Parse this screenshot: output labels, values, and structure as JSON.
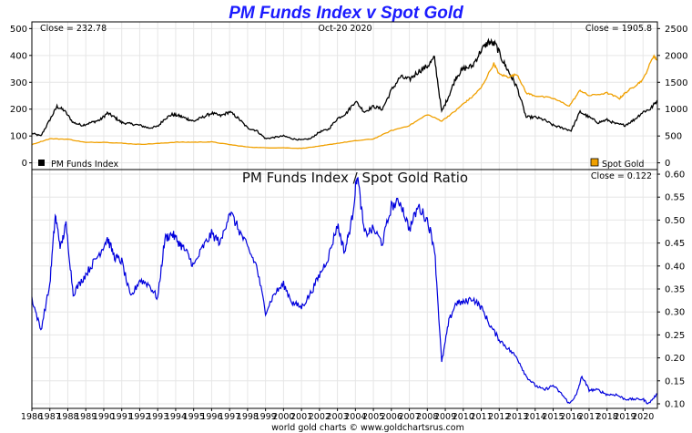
{
  "title": "PM Funds Index v Spot Gold",
  "footer": "world gold charts © www.goldchartsrus.com",
  "chart_data": [
    {
      "type": "line",
      "top_left_label": "Close = 232.78",
      "top_center_label": "Oct-20  2020",
      "top_right_label": "Close = 1905.8",
      "left_axis": {
        "ticks": [
          0,
          100,
          200,
          300,
          400,
          500
        ],
        "ylim": [
          -25,
          525
        ]
      },
      "right_axis": {
        "ticks": [
          0,
          500,
          1000,
          1500,
          2000,
          2500
        ],
        "ylim": [
          -125,
          2625
        ]
      },
      "x_range": [
        1986,
        2020.8
      ],
      "series": [
        {
          "name": "PM Funds Index",
          "axis": "left",
          "color": "#000000",
          "x": [
            1986.0,
            1986.5,
            1987.0,
            1987.4,
            1987.8,
            1988.3,
            1988.8,
            1989.3,
            1989.8,
            1990.2,
            1990.6,
            1991.0,
            1991.5,
            1992.0,
            1992.5,
            1993.0,
            1993.4,
            1993.8,
            1994.2,
            1994.6,
            1995.0,
            1995.5,
            1996.0,
            1996.5,
            1997.0,
            1997.5,
            1998.0,
            1998.5,
            1999.0,
            1999.5,
            2000.0,
            2000.5,
            2001.0,
            2001.5,
            2002.0,
            2002.5,
            2003.0,
            2003.5,
            2004.0,
            2004.5,
            2005.0,
            2005.5,
            2006.0,
            2006.5,
            2007.0,
            2007.5,
            2008.0,
            2008.4,
            2008.8,
            2009.2,
            2009.6,
            2010.0,
            2010.5,
            2011.0,
            2011.4,
            2011.8,
            2012.2,
            2012.6,
            2013.0,
            2013.5,
            2014.0,
            2014.5,
            2015.0,
            2015.5,
            2016.0,
            2016.5,
            2017.0,
            2017.5,
            2018.0,
            2018.5,
            2019.0,
            2019.5,
            2020.0,
            2020.4,
            2020.8
          ],
          "values": [
            110,
            100,
            160,
            210,
            195,
            150,
            140,
            150,
            160,
            185,
            170,
            150,
            145,
            140,
            130,
            135,
            165,
            180,
            175,
            165,
            155,
            170,
            185,
            175,
            190,
            165,
            130,
            120,
            90,
            95,
            100,
            90,
            85,
            90,
            115,
            125,
            165,
            185,
            230,
            190,
            210,
            200,
            270,
            320,
            310,
            340,
            360,
            390,
            190,
            250,
            320,
            350,
            360,
            420,
            450,
            440,
            380,
            330,
            280,
            170,
            170,
            160,
            140,
            130,
            120,
            190,
            170,
            150,
            160,
            145,
            140,
            160,
            190,
            200,
            232.78
          ]
        },
        {
          "name": "Spot Gold",
          "axis": "right",
          "color": "#f0a000",
          "x": [
            1986.0,
            1987.0,
            1988.0,
            1989.0,
            1990.0,
            1991.0,
            1992.0,
            1993.0,
            1994.0,
            1995.0,
            1996.0,
            1997.0,
            1998.0,
            1999.0,
            2000.0,
            2001.0,
            2002.0,
            2003.0,
            2004.0,
            2005.0,
            2006.0,
            2007.0,
            2008.0,
            2008.8,
            2009.5,
            2010.0,
            2010.5,
            2011.0,
            2011.7,
            2012.0,
            2012.5,
            2013.0,
            2013.5,
            2014.0,
            2015.0,
            2015.9,
            2016.5,
            2017.0,
            2018.0,
            2018.7,
            2019.0,
            2019.5,
            2020.0,
            2020.6,
            2020.8
          ],
          "values": [
            340,
            450,
            440,
            380,
            385,
            365,
            345,
            360,
            385,
            385,
            390,
            340,
            295,
            280,
            280,
            270,
            310,
            365,
            410,
            445,
            600,
            695,
            900,
            780,
            950,
            1100,
            1230,
            1400,
            1850,
            1650,
            1600,
            1650,
            1300,
            1250,
            1200,
            1060,
            1350,
            1250,
            1300,
            1200,
            1300,
            1420,
            1550,
            2000,
            1905.8
          ]
        }
      ],
      "legend": [
        "PM Funds Index",
        "Spot Gold"
      ],
      "legend_placement": "bottom-left and bottom-right"
    },
    {
      "type": "line",
      "title": "PM Funds Index  /  Spot Gold Ratio",
      "top_right_label": "Close = 0.122",
      "right_axis": {
        "ticks": [
          0.1,
          0.15,
          0.2,
          0.25,
          0.3,
          0.35,
          0.4,
          0.45,
          0.5,
          0.55,
          0.6
        ],
        "ylim": [
          0.09,
          0.61
        ]
      },
      "x_range": [
        1986,
        2020.8
      ],
      "series": [
        {
          "name": "",
          "color": "#0000dd",
          "x": [
            1986.0,
            1986.5,
            1987.0,
            1987.3,
            1987.6,
            1987.9,
            1988.3,
            1988.8,
            1989.3,
            1989.8,
            1990.2,
            1990.6,
            1991.0,
            1991.5,
            1992.0,
            1992.5,
            1993.0,
            1993.4,
            1993.8,
            1994.2,
            1994.6,
            1995.0,
            1995.5,
            1996.0,
            1996.5,
            1997.0,
            1997.5,
            1998.0,
            1998.5,
            1999.0,
            1999.5,
            2000.0,
            2000.5,
            2001.0,
            2001.5,
            2002.0,
            2002.5,
            2003.0,
            2003.4,
            2003.8,
            2004.1,
            2004.5,
            2005.0,
            2005.5,
            2006.0,
            2006.5,
            2007.0,
            2007.5,
            2008.0,
            2008.4,
            2008.8,
            2009.2,
            2009.6,
            2010.0,
            2010.5,
            2011.0,
            2011.5,
            2012.0,
            2012.5,
            2013.0,
            2013.5,
            2014.0,
            2014.5,
            2015.0,
            2015.5,
            2015.9,
            2016.3,
            2016.6,
            2017.0,
            2017.5,
            2018.0,
            2018.5,
            2019.0,
            2019.5,
            2020.0,
            2020.3,
            2020.8
          ],
          "values": [
            0.33,
            0.26,
            0.36,
            0.51,
            0.44,
            0.49,
            0.34,
            0.37,
            0.4,
            0.43,
            0.46,
            0.42,
            0.41,
            0.33,
            0.37,
            0.36,
            0.33,
            0.46,
            0.47,
            0.45,
            0.43,
            0.4,
            0.44,
            0.47,
            0.45,
            0.52,
            0.48,
            0.44,
            0.4,
            0.3,
            0.34,
            0.36,
            0.32,
            0.31,
            0.34,
            0.38,
            0.42,
            0.49,
            0.43,
            0.5,
            0.6,
            0.47,
            0.48,
            0.45,
            0.53,
            0.54,
            0.48,
            0.53,
            0.5,
            0.44,
            0.19,
            0.28,
            0.32,
            0.32,
            0.33,
            0.31,
            0.27,
            0.24,
            0.22,
            0.2,
            0.16,
            0.14,
            0.13,
            0.14,
            0.12,
            0.1,
            0.12,
            0.16,
            0.13,
            0.13,
            0.12,
            0.12,
            0.11,
            0.11,
            0.11,
            0.1,
            0.122
          ]
        }
      ]
    }
  ],
  "years": [
    "1986",
    "1987",
    "1988",
    "1989",
    "1990",
    "1991",
    "1992",
    "1993",
    "1994",
    "1995",
    "1996",
    "1997",
    "1998",
    "1999",
    "2000",
    "2001",
    "2002",
    "2003",
    "2004",
    "2005",
    "2006",
    "2007",
    "2008",
    "2009",
    "2010",
    "2011",
    "2012",
    "2013",
    "2014",
    "2015",
    "2016",
    "2017",
    "2018",
    "2019",
    "2020"
  ]
}
